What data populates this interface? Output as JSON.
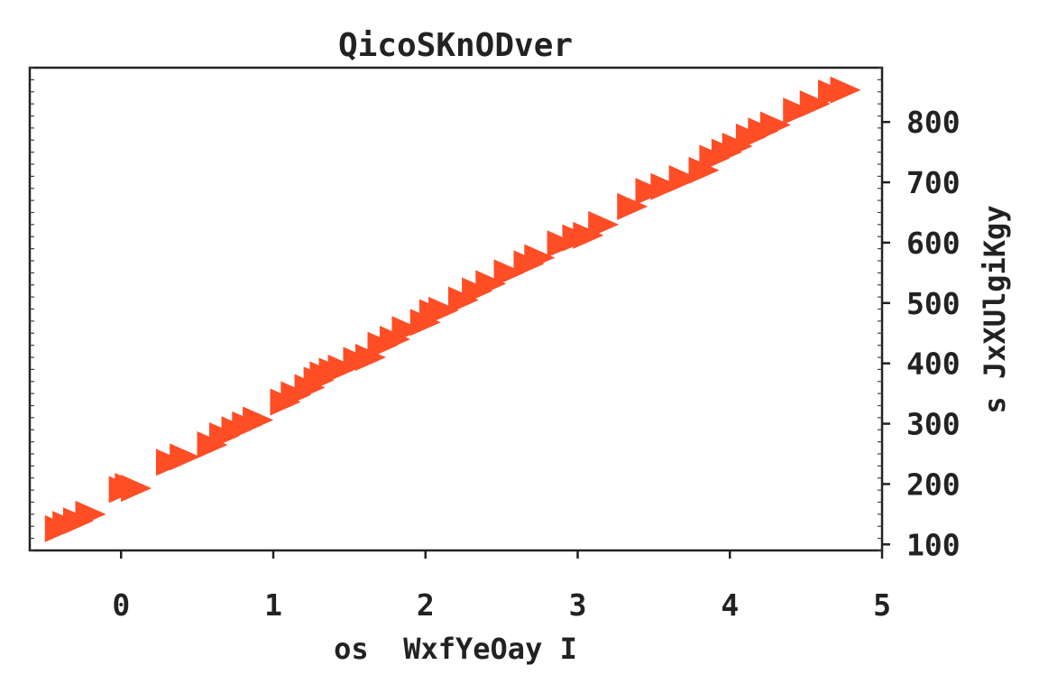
{
  "chart_data": {
    "type": "scatter",
    "title": "QicoSKnODver",
    "xlabel": "os  WxfYeOay I",
    "ylabel": "s JxXUlgiKgy",
    "xlim": [
      -0.6,
      5.0
    ],
    "ylim": [
      90,
      890
    ],
    "y_axis_position": "right",
    "grid": false,
    "legend": "none",
    "x_ticks": [
      0,
      1,
      2,
      3,
      4,
      5
    ],
    "y_ticks": [
      100,
      200,
      300,
      400,
      500,
      600,
      700,
      800
    ],
    "x_tick_labels": [
      "0",
      "1",
      "2",
      "3",
      "4",
      "5"
    ],
    "y_tick_labels": [
      "100",
      "200",
      "300",
      "400",
      "500",
      "600",
      "700",
      "800"
    ],
    "marker": "triangle-right",
    "series": [
      {
        "color": "#ff4d26",
        "points": [
          {
            "x": -0.4,
            "y": 126
          },
          {
            "x": -0.35,
            "y": 133
          },
          {
            "x": -0.28,
            "y": 139
          },
          {
            "x": -0.2,
            "y": 150
          },
          {
            "x": 0.02,
            "y": 191
          },
          {
            "x": 0.06,
            "y": 196
          },
          {
            "x": 0.1,
            "y": 193
          },
          {
            "x": 0.33,
            "y": 236
          },
          {
            "x": 0.42,
            "y": 245
          },
          {
            "x": 0.6,
            "y": 265
          },
          {
            "x": 0.68,
            "y": 280
          },
          {
            "x": 0.76,
            "y": 290
          },
          {
            "x": 0.83,
            "y": 298
          },
          {
            "x": 0.9,
            "y": 306
          },
          {
            "x": 1.08,
            "y": 336
          },
          {
            "x": 1.15,
            "y": 348
          },
          {
            "x": 1.24,
            "y": 360
          },
          {
            "x": 1.3,
            "y": 372
          },
          {
            "x": 1.34,
            "y": 381
          },
          {
            "x": 1.4,
            "y": 387
          },
          {
            "x": 1.46,
            "y": 392
          },
          {
            "x": 1.56,
            "y": 405
          },
          {
            "x": 1.64,
            "y": 410
          },
          {
            "x": 1.72,
            "y": 430
          },
          {
            "x": 1.8,
            "y": 440
          },
          {
            "x": 1.88,
            "y": 456
          },
          {
            "x": 2.0,
            "y": 468
          },
          {
            "x": 2.06,
            "y": 484
          },
          {
            "x": 2.12,
            "y": 488
          },
          {
            "x": 2.25,
            "y": 505
          },
          {
            "x": 2.34,
            "y": 520
          },
          {
            "x": 2.43,
            "y": 532
          },
          {
            "x": 2.55,
            "y": 550
          },
          {
            "x": 2.68,
            "y": 565
          },
          {
            "x": 2.75,
            "y": 575
          },
          {
            "x": 2.9,
            "y": 598
          },
          {
            "x": 3.0,
            "y": 608
          },
          {
            "x": 3.07,
            "y": 612
          },
          {
            "x": 3.17,
            "y": 630
          },
          {
            "x": 3.36,
            "y": 660
          },
          {
            "x": 3.48,
            "y": 685
          },
          {
            "x": 3.58,
            "y": 693
          },
          {
            "x": 3.7,
            "y": 706
          },
          {
            "x": 3.83,
            "y": 720
          },
          {
            "x": 3.9,
            "y": 740
          },
          {
            "x": 3.98,
            "y": 750
          },
          {
            "x": 4.05,
            "y": 760
          },
          {
            "x": 4.14,
            "y": 775
          },
          {
            "x": 4.22,
            "y": 785
          },
          {
            "x": 4.3,
            "y": 795
          },
          {
            "x": 4.45,
            "y": 818
          },
          {
            "x": 4.56,
            "y": 830
          },
          {
            "x": 4.68,
            "y": 848
          },
          {
            "x": 4.76,
            "y": 853
          }
        ]
      }
    ]
  }
}
